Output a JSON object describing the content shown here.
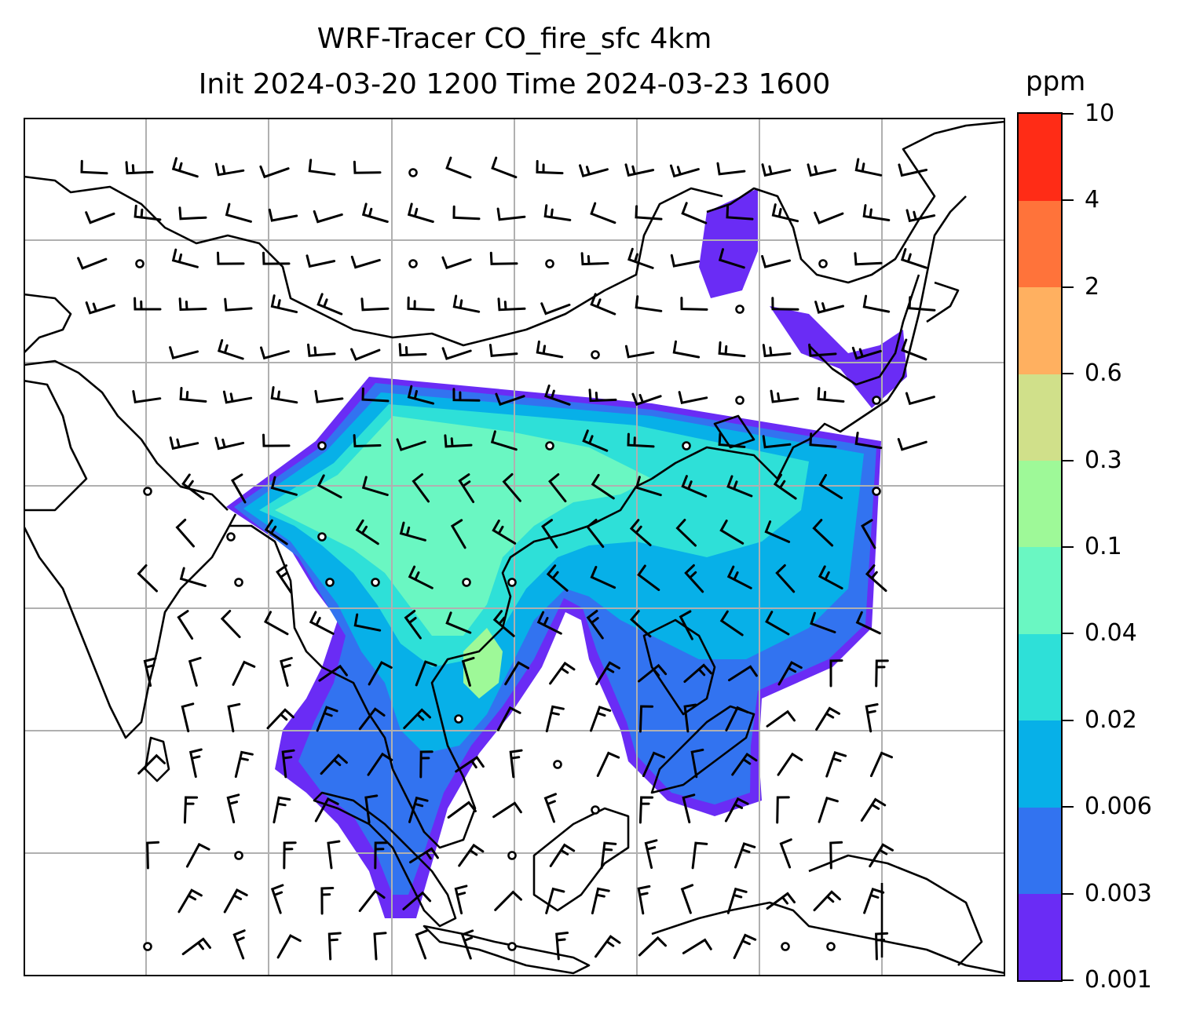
{
  "title": {
    "line1": "WRF-Tracer CO_fire_sfc 4km",
    "line2": "Init 2024-03-20 1200 Time 2024-03-23 1600"
  },
  "colorbar": {
    "unit": "ppm",
    "levels": [
      "0.001",
      "0.003",
      "0.006",
      "0.02",
      "0.04",
      "0.1",
      "0.3",
      "0.6",
      "2",
      "4",
      "10"
    ],
    "colors": [
      "#6a2cf5",
      "#3273f0",
      "#07b0e8",
      "#2ee0d8",
      "#6af7c2",
      "#9ef998",
      "#d0e08a",
      "#ffb060",
      "#ff733a",
      "#ff2c16"
    ]
  },
  "map": {
    "domain": "East and Southeast Asia",
    "gridlines": true,
    "plume_levels": [
      {
        "level": "0.001",
        "color": "#6a2cf5"
      },
      {
        "level": "0.003",
        "color": "#3273f0"
      },
      {
        "level": "0.006",
        "color": "#07b0e8"
      },
      {
        "level": "0.02",
        "color": "#2ee0d8"
      },
      {
        "level": "0.04",
        "color": "#6af7c2"
      },
      {
        "level": "0.1",
        "color": "#9ef998"
      }
    ],
    "wind_barbs": "black",
    "coastlines": "black"
  }
}
